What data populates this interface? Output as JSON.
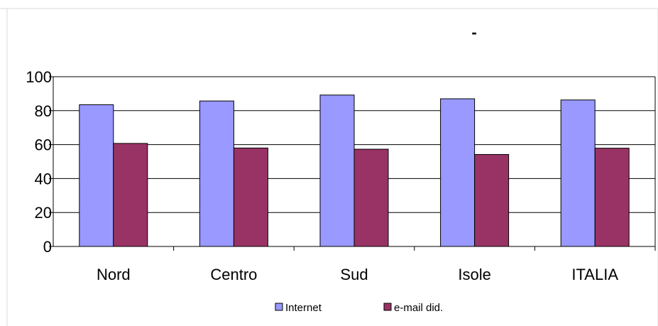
{
  "colors": {
    "internet": "#9999ff",
    "email": "#993366",
    "gridline": "#000000",
    "frame": "#cccccc"
  },
  "chart_data": {
    "type": "bar",
    "title": "-",
    "xlabel": "",
    "ylabel": "",
    "categories": [
      "Nord",
      "Centro",
      "Sud",
      "Isole",
      "ITALIA"
    ],
    "series": [
      {
        "name": "Internet",
        "values": [
          83.5,
          85.7,
          89.2,
          87.0,
          86.3
        ]
      },
      {
        "name": "e-mail did.",
        "values": [
          60.7,
          58.0,
          57.3,
          54.2,
          57.9
        ]
      }
    ],
    "ylim": [
      0,
      100
    ],
    "yticks": [
      0,
      20,
      40,
      60,
      80,
      100
    ],
    "grid": true,
    "legend_position": "bottom"
  }
}
